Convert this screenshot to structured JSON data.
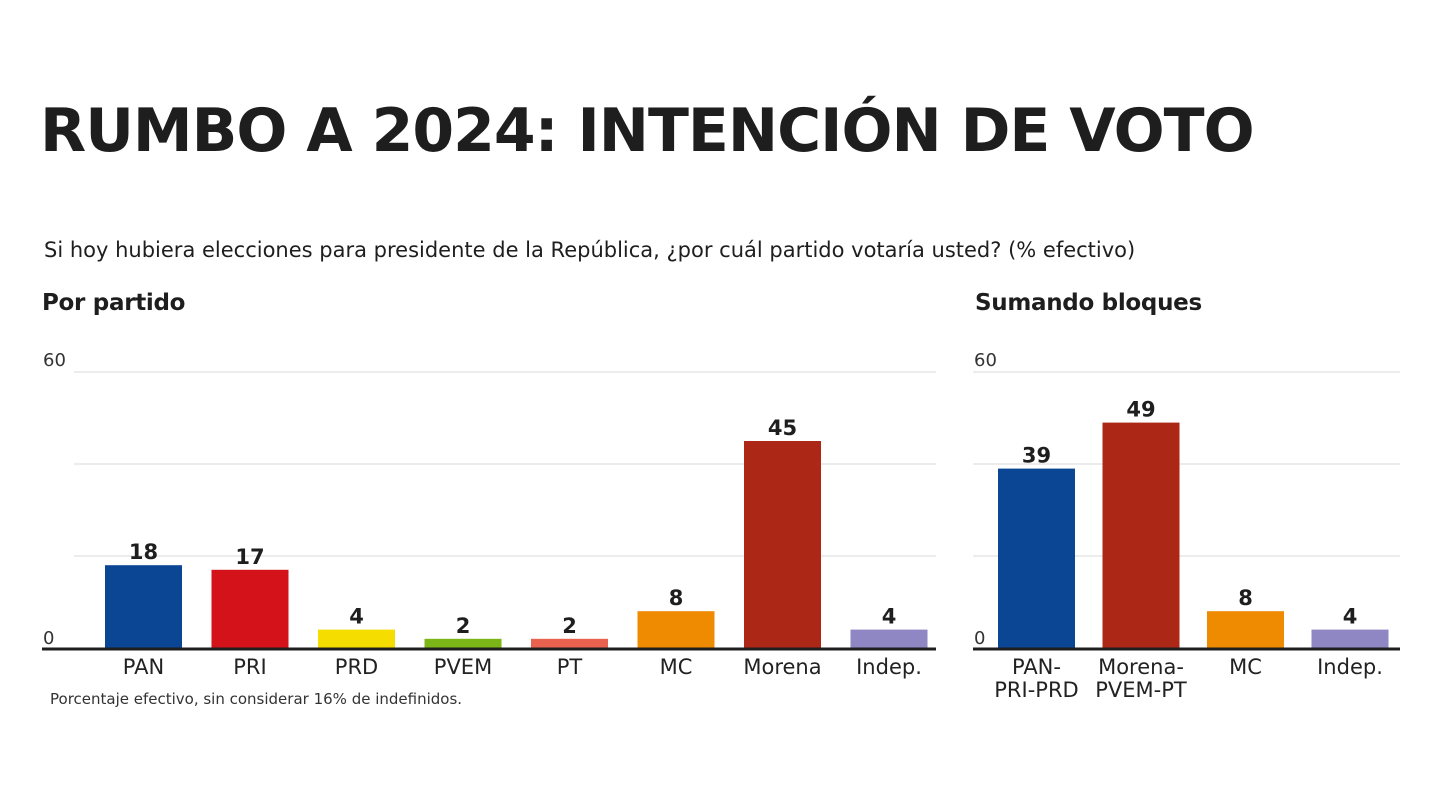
{
  "title": "RUMBO A 2024: INTENCIÓN DE VOTO",
  "question": "Si hoy hubiera elecciones para presidente de la República, ¿por cuál partido votaría usted? (% efectivo)",
  "footnote": "Porcentaje efectivo, sin considerar 16% de indefinidos.",
  "chart_data": [
    {
      "type": "bar",
      "title": "Por partido",
      "categories": [
        "PAN",
        "PRI",
        "PRD",
        "PVEM",
        "PT",
        "MC",
        "Morena",
        "Indep."
      ],
      "values": [
        18,
        17,
        4,
        2,
        2,
        8,
        45,
        4
      ],
      "colors": [
        "#0b4694",
        "#d3121a",
        "#f6dd00",
        "#7cb518",
        "#e9624f",
        "#ef8b00",
        "#ad2717",
        "#8f86c4"
      ],
      "ylim": [
        0,
        60
      ],
      "yticks": [
        0,
        60
      ],
      "grid": true
    },
    {
      "type": "bar",
      "title": "Sumando bloques",
      "categories": [
        [
          "PAN-",
          "PRI-PRD"
        ],
        [
          "Morena-",
          "PVEM-PT"
        ],
        [
          "MC"
        ],
        [
          "Indep."
        ]
      ],
      "values": [
        39,
        49,
        8,
        4
      ],
      "colors": [
        "#0b4694",
        "#ad2717",
        "#ef8b00",
        "#8f86c4"
      ],
      "ylim": [
        0,
        60
      ],
      "yticks": [
        0,
        60
      ],
      "grid": true
    }
  ]
}
